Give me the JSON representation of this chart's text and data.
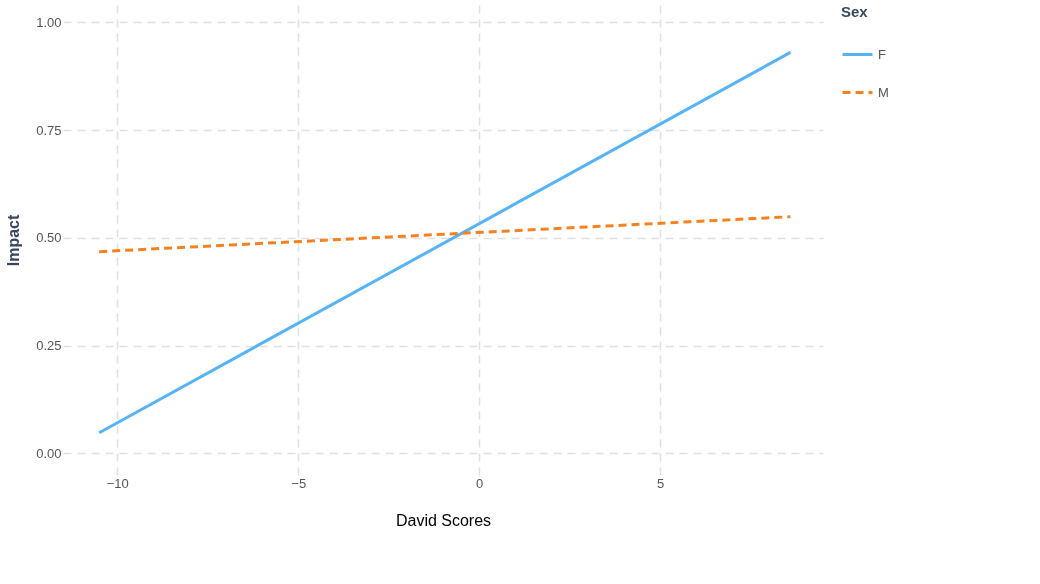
{
  "chart_data": {
    "type": "line",
    "xlabel": "David Scores",
    "ylabel": "Impact",
    "legend_title": "Sex",
    "x": [
      -10.5,
      8.6
    ],
    "series": [
      {
        "name": "F",
        "color": "#56b4f5",
        "values": [
          0.048,
          0.93
        ],
        "line_style": "solid"
      },
      {
        "name": "M",
        "color": "#f5821f",
        "values": [
          0.468,
          0.549
        ],
        "line_style": "dashed"
      }
    ],
    "xlim": [
      -11.5,
      9.5
    ],
    "xticks": [
      -10,
      -5,
      0,
      5
    ],
    "ylim": [
      -0.05,
      1.04
    ],
    "yticks": [
      {
        "value": 0,
        "label": "0.00"
      },
      {
        "value": 0.25,
        "label": "0.25"
      },
      {
        "value": 0.5,
        "label": "0.50"
      },
      {
        "value": 0.75,
        "label": "0.75"
      },
      {
        "value": 1,
        "label": "1.00"
      }
    ],
    "grid": true,
    "legend": "right"
  }
}
